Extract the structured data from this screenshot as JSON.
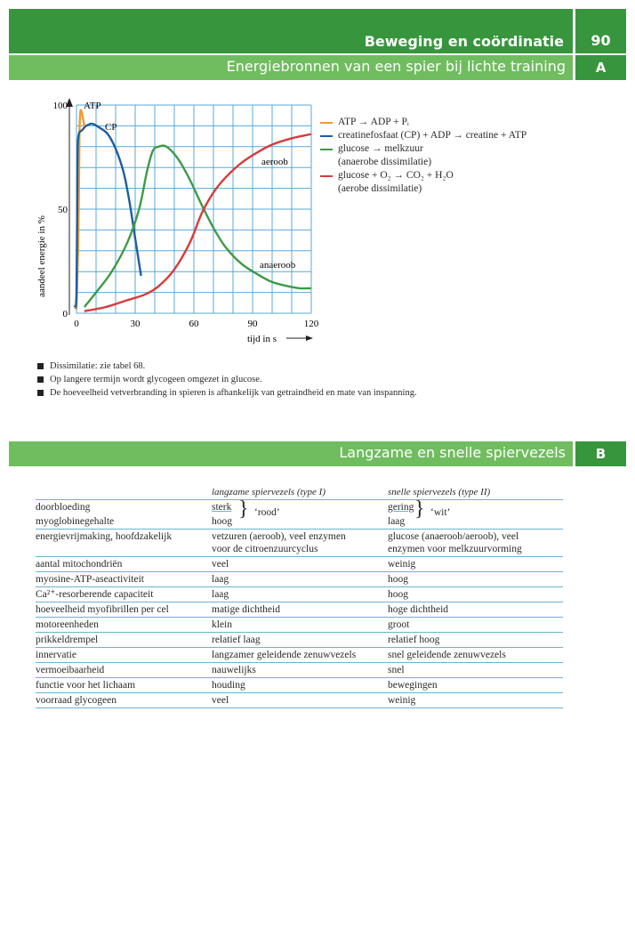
{
  "header": {
    "title": "Beweging en coördinatie",
    "page_number": "90",
    "section_a_title": "Energiebronnen van een spier bij lichte training",
    "section_a_letter": "A",
    "section_b_title": "Langzame en snelle spiervezels",
    "section_b_letter": "B"
  },
  "chart_data": {
    "type": "line",
    "ylabel": "aandeel energie in %",
    "xlabel": "tijd in s",
    "xlim": [
      0,
      120
    ],
    "ylim": [
      0,
      100
    ],
    "x_ticks": [
      "0",
      "30",
      "60",
      "90",
      "120"
    ],
    "y_ticks": [
      "0",
      "50",
      "100"
    ],
    "grid": true,
    "series": [
      {
        "name": "ATP",
        "color": "#f29a2e",
        "points": [
          [
            0,
            2
          ],
          [
            1,
            40
          ],
          [
            1.5,
            85
          ],
          [
            2,
            97
          ],
          [
            3,
            95
          ],
          [
            4,
            90
          ]
        ]
      },
      {
        "name": "CP",
        "color": "#1f5d9e",
        "points": [
          [
            -1,
            3
          ],
          [
            0,
            10
          ],
          [
            0.5,
            70
          ],
          [
            1,
            85
          ],
          [
            3,
            88
          ],
          [
            5,
            90
          ],
          [
            8,
            91
          ],
          [
            12,
            89
          ],
          [
            16,
            86
          ],
          [
            20,
            79
          ],
          [
            24,
            68
          ],
          [
            27,
            54
          ],
          [
            30,
            36
          ],
          [
            33,
            18
          ]
        ]
      },
      {
        "name": "anaeroob",
        "color": "#3e9a48",
        "points": [
          [
            4,
            3
          ],
          [
            10,
            10
          ],
          [
            18,
            20
          ],
          [
            26,
            34
          ],
          [
            32,
            50
          ],
          [
            36,
            68
          ],
          [
            39,
            78
          ],
          [
            42,
            80
          ],
          [
            46,
            80
          ],
          [
            52,
            74
          ],
          [
            58,
            64
          ],
          [
            64,
            52
          ],
          [
            70,
            41
          ],
          [
            76,
            32
          ],
          [
            84,
            24
          ],
          [
            92,
            19
          ],
          [
            100,
            15
          ],
          [
            108,
            13
          ],
          [
            114,
            12
          ],
          [
            120,
            12
          ]
        ]
      },
      {
        "name": "aeroob",
        "color": "#d63c3c",
        "points": [
          [
            4,
            1
          ],
          [
            15,
            3
          ],
          [
            25,
            6
          ],
          [
            35,
            9
          ],
          [
            42,
            13
          ],
          [
            50,
            21
          ],
          [
            58,
            34
          ],
          [
            64,
            48
          ],
          [
            70,
            58
          ],
          [
            76,
            65
          ],
          [
            84,
            72
          ],
          [
            92,
            77
          ],
          [
            100,
            81
          ],
          [
            110,
            84
          ],
          [
            120,
            86
          ]
        ]
      }
    ],
    "annotations": [
      "ATP",
      "CP",
      "aeroob",
      "anaeroob"
    ]
  },
  "legend": [
    {
      "color": "#f29a2e",
      "lines": [
        "ATP → ADP + Pᵢ"
      ]
    },
    {
      "color": "#1f5d9e",
      "lines": [
        "creatinefosfaat (CP) + ADP → creatine + ATP"
      ]
    },
    {
      "color": "#3e9a48",
      "lines": [
        "glucose → melkzuur",
        "(anaerobe dissimilatie)"
      ]
    },
    {
      "color": "#d63c3c",
      "lines": [
        "glucose + O₂ → CO₂ + H₂O",
        "(aerobe dissimilatie)"
      ]
    }
  ],
  "notes": [
    "Dissimilatie: zie tabel 68.",
    "Op langere termijn wordt glycogeen omgezet in glucose.",
    "De hoeveelheid vetverbranding in spieren is afhankelijk van getraindheid en mate van inspanning."
  ],
  "table": {
    "col_slow": "langzame spiervezels (type I)",
    "col_fast": "snelle spiervezels (type II)",
    "brace_slow": "‘rood’",
    "brace_fast": "‘wit’",
    "rows": [
      {
        "label": "doorbloeding",
        "slow": "sterk",
        "fast": "gering"
      },
      {
        "label": "myoglobinegehalte",
        "slow": "hoog",
        "fast": "laag"
      },
      {
        "label": "energievrijmaking, hoofdzakelijk",
        "slow": "vetzuren (aeroob), veel enzymen",
        "slow2": "voor de citroenzuurcyclus",
        "fast": "glucose (anaeroob/aeroob), veel",
        "fast2": "enzymen voor melkzuurvorming"
      },
      {
        "label": "aantal mitochondriën",
        "slow": "veel",
        "fast": "weinig"
      },
      {
        "label": "myosine-ATP-aseactiviteit",
        "slow": "laag",
        "fast": "hoog"
      },
      {
        "label": "Ca²⁺-resorberende capaciteit",
        "slow": "laag",
        "fast": "hoog"
      },
      {
        "label": "hoeveelheid myofibrillen per cel",
        "slow": "matige dichtheid",
        "fast": "hoge dichtheid"
      },
      {
        "label": "motoreenheden",
        "slow": "klein",
        "fast": "groot"
      },
      {
        "label": "prikkeldrempel",
        "slow": "relatief laag",
        "fast": "relatief hoog"
      },
      {
        "label": "innervatie",
        "slow": "langzamer geleidende zenuwvezels",
        "fast": "snel geleidende zenuwvezels"
      },
      {
        "label": "vermoeibaarheid",
        "slow": "nauwelijks",
        "fast": "snel"
      },
      {
        "label": "functie voor het lichaam",
        "slow": "houding",
        "fast": "bewegingen"
      },
      {
        "label": "voorraad glycogeen",
        "slow": "veel",
        "fast": "weinig"
      }
    ]
  }
}
